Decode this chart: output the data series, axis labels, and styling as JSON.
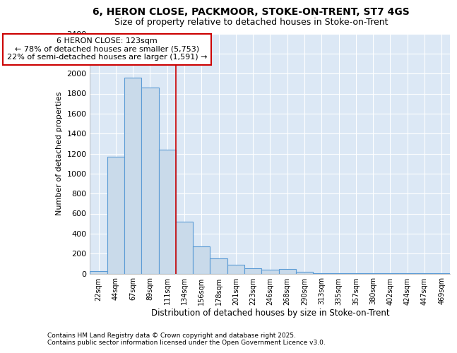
{
  "title1": "6, HERON CLOSE, PACKMOOR, STOKE-ON-TRENT, ST7 4GS",
  "title2": "Size of property relative to detached houses in Stoke-on-Trent",
  "xlabel": "Distribution of detached houses by size in Stoke-on-Trent",
  "ylabel": "Number of detached properties",
  "categories": [
    "22sqm",
    "44sqm",
    "67sqm",
    "89sqm",
    "111sqm",
    "134sqm",
    "156sqm",
    "178sqm",
    "201sqm",
    "223sqm",
    "246sqm",
    "268sqm",
    "290sqm",
    "313sqm",
    "335sqm",
    "357sqm",
    "380sqm",
    "402sqm",
    "424sqm",
    "447sqm",
    "469sqm"
  ],
  "values": [
    25,
    1170,
    1960,
    1860,
    1240,
    520,
    275,
    150,
    90,
    50,
    42,
    45,
    20,
    5,
    3,
    2,
    2,
    2,
    2,
    2,
    2
  ],
  "bar_color": "#c9daea",
  "bar_edge_color": "#5b9bd5",
  "bg_color": "#ffffff",
  "plot_bg_color": "#dce8f5",
  "grid_color": "#ffffff",
  "annotation_text": "6 HERON CLOSE: 123sqm\n← 78% of detached houses are smaller (5,753)\n22% of semi-detached houses are larger (1,591) →",
  "annotation_box_color": "#ffffff",
  "annotation_box_edge": "#cc0000",
  "vline_color": "#cc0000",
  "ylim": [
    0,
    2400
  ],
  "yticks": [
    0,
    200,
    400,
    600,
    800,
    1000,
    1200,
    1400,
    1600,
    1800,
    2000,
    2200,
    2400
  ],
  "footer1": "Contains HM Land Registry data © Crown copyright and database right 2025.",
  "footer2": "Contains public sector information licensed under the Open Government Licence v3.0."
}
